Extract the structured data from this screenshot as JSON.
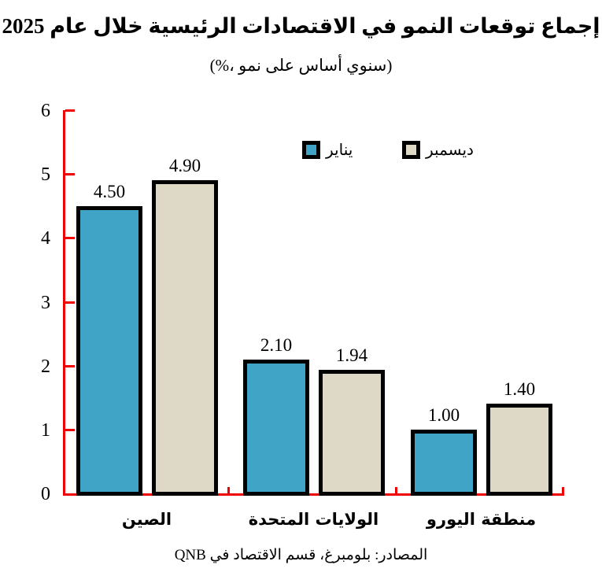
{
  "title": "إجماع توقعات النمو في الاقتصادات الرئيسية خلال عام 2025",
  "subtitle": "(%، نمو‎ على‎ أساس‎ سنوي)",
  "legend": {
    "items": [
      {
        "id": "january",
        "label": "يناير",
        "swatch_color": "#3FA4C6"
      },
      {
        "id": "december",
        "label": "ديسمبر",
        "swatch_color": "#DED8C6"
      }
    ]
  },
  "colors": {
    "axis_red": "#F00000",
    "bar_border": "#000000",
    "january_fill": "#3FA4C6",
    "december_fill": "#DED8C6",
    "text": "#000000"
  },
  "chart_data": {
    "type": "bar",
    "title": "إجماع توقعات النمو في الاقتصادات الرئيسية خلال عام 2025",
    "subtitle": "(%، نمو على أساس سنوي)",
    "categories": [
      "الصين",
      "الولايات المتحدة",
      "منطقة اليورو"
    ],
    "category_ids": [
      "china",
      "united-states",
      "eurozone"
    ],
    "series": [
      {
        "id": "january",
        "name": "يناير",
        "color": "#3FA4C6",
        "values": [
          4.5,
          2.1,
          1.0
        ]
      },
      {
        "id": "december",
        "name": "ديسمبر",
        "color": "#DED8C6",
        "values": [
          4.9,
          1.94,
          1.4
        ]
      }
    ],
    "value_label_decimals": 2,
    "ylim": [
      0,
      6
    ],
    "ytick_step": 1,
    "ytick_labels": [
      "0",
      "1",
      "2",
      "3",
      "4",
      "5",
      "6"
    ],
    "grid": false,
    "legend_position": "top-center"
  },
  "source": "المصادر: بلومبرغ، قسم الاقتصاد في QNB"
}
